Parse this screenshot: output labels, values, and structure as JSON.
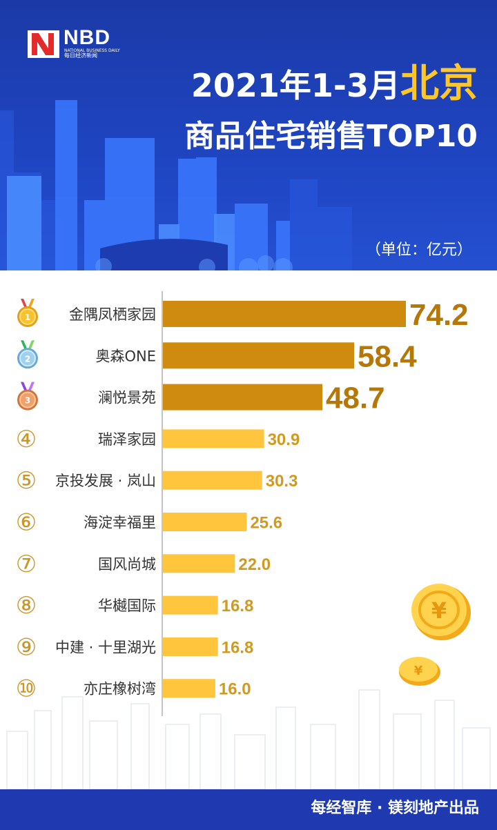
{
  "brand": {
    "name": "NBD",
    "sub_en": "NATIONAL BUSINESS DAILY",
    "sub_cn": "每日经济新闻"
  },
  "header": {
    "title_prefix": "2021年1-3月",
    "title_highlight": "北京",
    "title_line2": "商品住宅销售TOP10",
    "unit": "（单位：亿元）"
  },
  "footer": {
    "credit": "每经智库 · 镁刻地产出品"
  },
  "colors": {
    "header_blue": "#1f45c2",
    "top_bar": "#cf8a10",
    "bar": "#ffc53d",
    "value_top": "#b57708",
    "value": "#d19a1e",
    "footer_blue": "#1f3ab0"
  },
  "chart_data": {
    "type": "bar",
    "orientation": "horizontal",
    "categories": [
      "金隅凤栖家园",
      "奥森ONE",
      "澜悦景苑",
      "瑞泽家园",
      "京投发展 · 岚山",
      "海淀幸福里",
      "国风尚城",
      "华樾国际",
      "中建 · 十里湖光",
      "亦庄橡树湾"
    ],
    "ranks": [
      "1",
      "2",
      "3",
      "④",
      "⑤",
      "⑥",
      "⑦",
      "⑧",
      "⑨",
      "⑩"
    ],
    "rank_badges": [
      "gold-medal-icon",
      "silver-medal-icon",
      "bronze-medal-icon"
    ],
    "values": [
      74.2,
      58.4,
      48.7,
      30.9,
      30.3,
      25.6,
      22.0,
      16.8,
      16.8,
      16.0
    ],
    "value_labels": [
      "74.2",
      "58.4",
      "48.7",
      "30.9",
      "30.3",
      "25.6",
      "22.0",
      "16.8",
      "16.8",
      "16.0"
    ]
  }
}
